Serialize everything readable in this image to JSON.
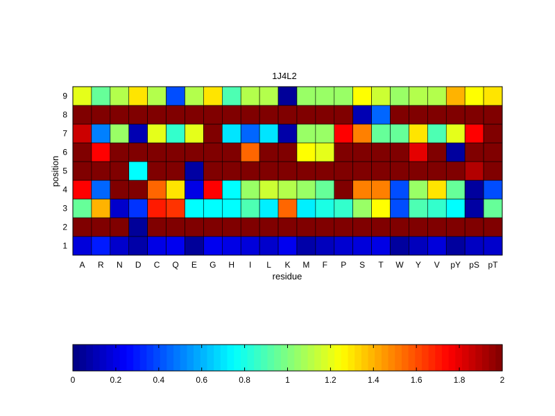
{
  "chart_data": [
    {
      "type": "heatmap",
      "title": "1J4L2",
      "xlabel": "residue",
      "ylabel": "position",
      "x": [
        "A",
        "R",
        "N",
        "D",
        "C",
        "Q",
        "E",
        "G",
        "H",
        "I",
        "L",
        "K",
        "M",
        "F",
        "P",
        "S",
        "T",
        "W",
        "Y",
        "V",
        "pY",
        "pS",
        "pT"
      ],
      "y": [
        "1",
        "2",
        "3",
        "4",
        "5",
        "6",
        "7",
        "8",
        "9"
      ],
      "clim": [
        0,
        2
      ],
      "colormap": "jet",
      "values": [
        [
          0.18,
          0.3,
          0.15,
          0.08,
          0.2,
          0.22,
          0.05,
          0.22,
          0.2,
          0.18,
          0.15,
          0.22,
          0.08,
          0.12,
          0.16,
          0.18,
          0.2,
          0.06,
          0.12,
          0.18,
          0.06,
          0.13,
          0.15
        ],
        [
          2.0,
          2.0,
          2.0,
          0.05,
          2.0,
          2.0,
          2.0,
          2.0,
          2.0,
          2.0,
          2.0,
          2.0,
          2.0,
          2.0,
          2.0,
          2.0,
          2.0,
          2.0,
          2.0,
          2.0,
          2.0,
          2.0,
          2.0
        ],
        [
          0.95,
          1.4,
          0.15,
          0.35,
          1.7,
          1.65,
          0.75,
          0.75,
          0.75,
          0.9,
          0.72,
          1.55,
          0.72,
          0.8,
          0.85,
          1.05,
          1.25,
          0.4,
          0.9,
          0.85,
          0.75,
          0.07,
          0.95
        ],
        [
          1.75,
          0.45,
          2.0,
          2.0,
          1.55,
          1.3,
          0.2,
          1.75,
          0.75,
          1.05,
          1.15,
          1.1,
          1.05,
          0.95,
          2.0,
          1.5,
          1.5,
          0.4,
          1.05,
          1.3,
          0.95,
          0.06,
          0.4
        ],
        [
          2.0,
          2.0,
          2.0,
          0.75,
          2.0,
          2.0,
          0.07,
          2.0,
          2.0,
          2.0,
          2.0,
          2.0,
          2.0,
          2.0,
          2.0,
          2.0,
          2.0,
          2.0,
          2.0,
          2.0,
          2.0,
          1.9,
          2.0
        ],
        [
          2.0,
          1.75,
          2.0,
          2.0,
          2.0,
          2.0,
          2.0,
          2.0,
          2.0,
          1.55,
          2.0,
          2.0,
          1.25,
          1.2,
          2.0,
          2.0,
          2.0,
          2.0,
          1.8,
          2.0,
          0.06,
          2.0,
          2.0
        ],
        [
          1.85,
          0.5,
          1.05,
          0.1,
          1.2,
          0.85,
          1.2,
          2.0,
          0.7,
          0.45,
          0.7,
          0.08,
          1.05,
          1.05,
          1.75,
          1.5,
          0.95,
          0.95,
          1.3,
          0.9,
          1.2,
          1.75,
          2.0
        ],
        [
          2.0,
          2.0,
          2.0,
          2.0,
          2.0,
          2.0,
          2.0,
          2.0,
          2.0,
          2.0,
          2.0,
          2.0,
          2.0,
          2.0,
          2.0,
          0.1,
          0.45,
          2.0,
          2.0,
          2.0,
          2.0,
          2.0,
          2.0
        ],
        [
          1.2,
          0.95,
          1.1,
          1.3,
          1.1,
          0.4,
          1.1,
          1.3,
          0.9,
          1.1,
          1.1,
          0.05,
          1.05,
          1.05,
          1.05,
          1.25,
          1.15,
          1.05,
          1.1,
          1.1,
          1.4,
          1.25,
          1.3
        ]
      ]
    },
    {
      "type": "colorbar",
      "ticks": [
        "0",
        "0.2",
        "0.4",
        "0.6",
        "0.8",
        "1",
        "1.2",
        "1.4",
        "1.6",
        "1.8",
        "2"
      ],
      "range": [
        0,
        2
      ]
    }
  ]
}
